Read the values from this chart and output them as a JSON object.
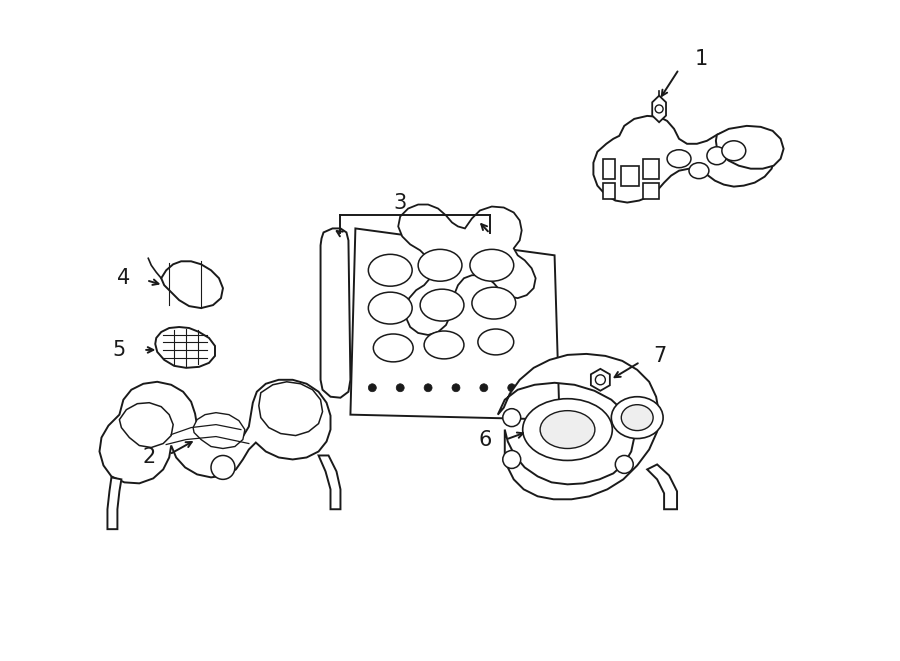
{
  "background_color": "#ffffff",
  "line_color": "#1a1a1a",
  "line_width": 1.4,
  "fig_width": 9.0,
  "fig_height": 6.61,
  "dpi": 100,
  "font_size": 15
}
